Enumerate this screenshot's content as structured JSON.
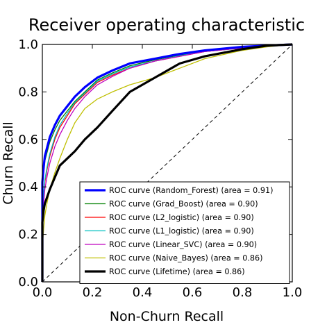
{
  "chart_data": {
    "type": "line",
    "title": "Receiver operating characteristic",
    "xlabel": "Non-Churn Recall",
    "ylabel": "Churn Recall",
    "xlim": [
      0.0,
      1.0
    ],
    "ylim": [
      0.0,
      1.0
    ],
    "x_ticks": [
      "0.0",
      "0.2",
      "0.4",
      "0.6",
      "0.8",
      "1.0"
    ],
    "y_ticks": [
      "0.0",
      "0.2",
      "0.4",
      "0.6",
      "0.8",
      "1.0"
    ],
    "grid": false,
    "legend_position": "lower-right",
    "diagonal": {
      "style": "dashed",
      "color": "#000000",
      "x": [
        0,
        1
      ],
      "y": [
        0,
        1
      ]
    },
    "series": [
      {
        "name": "ROC curve (Random_Forest) (area = 0.91)",
        "color": "#0000ff",
        "bold": true,
        "x": [
          0,
          0,
          0.005,
          0.01,
          0.02,
          0.03,
          0.05,
          0.07,
          0.1,
          0.13,
          0.17,
          0.22,
          0.28,
          0.35,
          0.45,
          0.55,
          0.65,
          0.8,
          0.9,
          1.0
        ],
        "y": [
          0,
          0.42,
          0.48,
          0.53,
          0.57,
          0.61,
          0.66,
          0.7,
          0.74,
          0.78,
          0.82,
          0.86,
          0.89,
          0.92,
          0.94,
          0.96,
          0.975,
          0.99,
          0.995,
          1.0
        ]
      },
      {
        "name": "ROC curve (Grad_Boost) (area = 0.90)",
        "color": "#008000",
        "bold": false,
        "x": [
          0,
          0,
          0.005,
          0.01,
          0.02,
          0.03,
          0.05,
          0.07,
          0.1,
          0.13,
          0.17,
          0.22,
          0.28,
          0.35,
          0.45,
          0.55,
          0.65,
          0.8,
          0.9,
          1.0
        ],
        "y": [
          0,
          0.4,
          0.46,
          0.51,
          0.55,
          0.59,
          0.64,
          0.68,
          0.72,
          0.76,
          0.8,
          0.85,
          0.88,
          0.91,
          0.935,
          0.955,
          0.97,
          0.985,
          0.995,
          1.0
        ]
      },
      {
        "name": "ROC curve (L2_logistic) (area = 0.90)",
        "color": "#ff0000",
        "bold": false,
        "x": [
          0,
          0,
          0.005,
          0.01,
          0.02,
          0.03,
          0.05,
          0.07,
          0.1,
          0.13,
          0.17,
          0.22,
          0.28,
          0.35,
          0.45,
          0.55,
          0.65,
          0.8,
          0.9,
          1.0
        ],
        "y": [
          0,
          0.28,
          0.36,
          0.42,
          0.48,
          0.53,
          0.6,
          0.65,
          0.7,
          0.75,
          0.79,
          0.84,
          0.87,
          0.9,
          0.93,
          0.95,
          0.97,
          0.985,
          0.995,
          1.0
        ]
      },
      {
        "name": "ROC curve (L1_logistic) (area = 0.90)",
        "color": "#00bfbf",
        "bold": false,
        "x": [
          0,
          0,
          0.005,
          0.01,
          0.02,
          0.03,
          0.05,
          0.07,
          0.1,
          0.13,
          0.17,
          0.22,
          0.28,
          0.35,
          0.45,
          0.55,
          0.65,
          0.8,
          0.9,
          1.0
        ],
        "y": [
          0,
          0.29,
          0.37,
          0.43,
          0.49,
          0.54,
          0.61,
          0.66,
          0.71,
          0.755,
          0.795,
          0.845,
          0.875,
          0.905,
          0.93,
          0.952,
          0.97,
          0.985,
          0.995,
          1.0
        ]
      },
      {
        "name": "ROC curve (Linear_SVC) (area = 0.90)",
        "color": "#bf00bf",
        "bold": false,
        "x": [
          0,
          0,
          0.005,
          0.01,
          0.02,
          0.03,
          0.05,
          0.07,
          0.1,
          0.13,
          0.17,
          0.22,
          0.28,
          0.35,
          0.45,
          0.55,
          0.65,
          0.8,
          0.9,
          1.0
        ],
        "y": [
          0,
          0.25,
          0.33,
          0.39,
          0.45,
          0.5,
          0.57,
          0.62,
          0.68,
          0.73,
          0.78,
          0.83,
          0.865,
          0.9,
          0.93,
          0.95,
          0.97,
          0.985,
          0.995,
          1.0
        ]
      },
      {
        "name": "ROC curve (Naive_Bayes) (area = 0.86)",
        "color": "#bfbf00",
        "bold": false,
        "x": [
          0,
          0,
          0.005,
          0.01,
          0.02,
          0.03,
          0.05,
          0.07,
          0.1,
          0.13,
          0.17,
          0.22,
          0.28,
          0.35,
          0.45,
          0.55,
          0.65,
          0.8,
          0.9,
          1.0
        ],
        "y": [
          0,
          0.15,
          0.22,
          0.28,
          0.34,
          0.39,
          0.46,
          0.52,
          0.6,
          0.67,
          0.73,
          0.77,
          0.8,
          0.83,
          0.86,
          0.9,
          0.94,
          0.975,
          0.99,
          1.0
        ]
      },
      {
        "name": "ROC curve (Lifetime) (area = 0.86)",
        "color": "#000000",
        "bold": true,
        "x": [
          0,
          0,
          0.005,
          0.01,
          0.02,
          0.03,
          0.05,
          0.07,
          0.1,
          0.13,
          0.17,
          0.22,
          0.28,
          0.35,
          0.45,
          0.55,
          0.65,
          0.8,
          0.9,
          1.0
        ],
        "y": [
          0,
          0.25,
          0.3,
          0.33,
          0.36,
          0.39,
          0.44,
          0.49,
          0.52,
          0.55,
          0.6,
          0.65,
          0.72,
          0.8,
          0.86,
          0.92,
          0.95,
          0.98,
          0.995,
          1.0
        ]
      }
    ]
  }
}
